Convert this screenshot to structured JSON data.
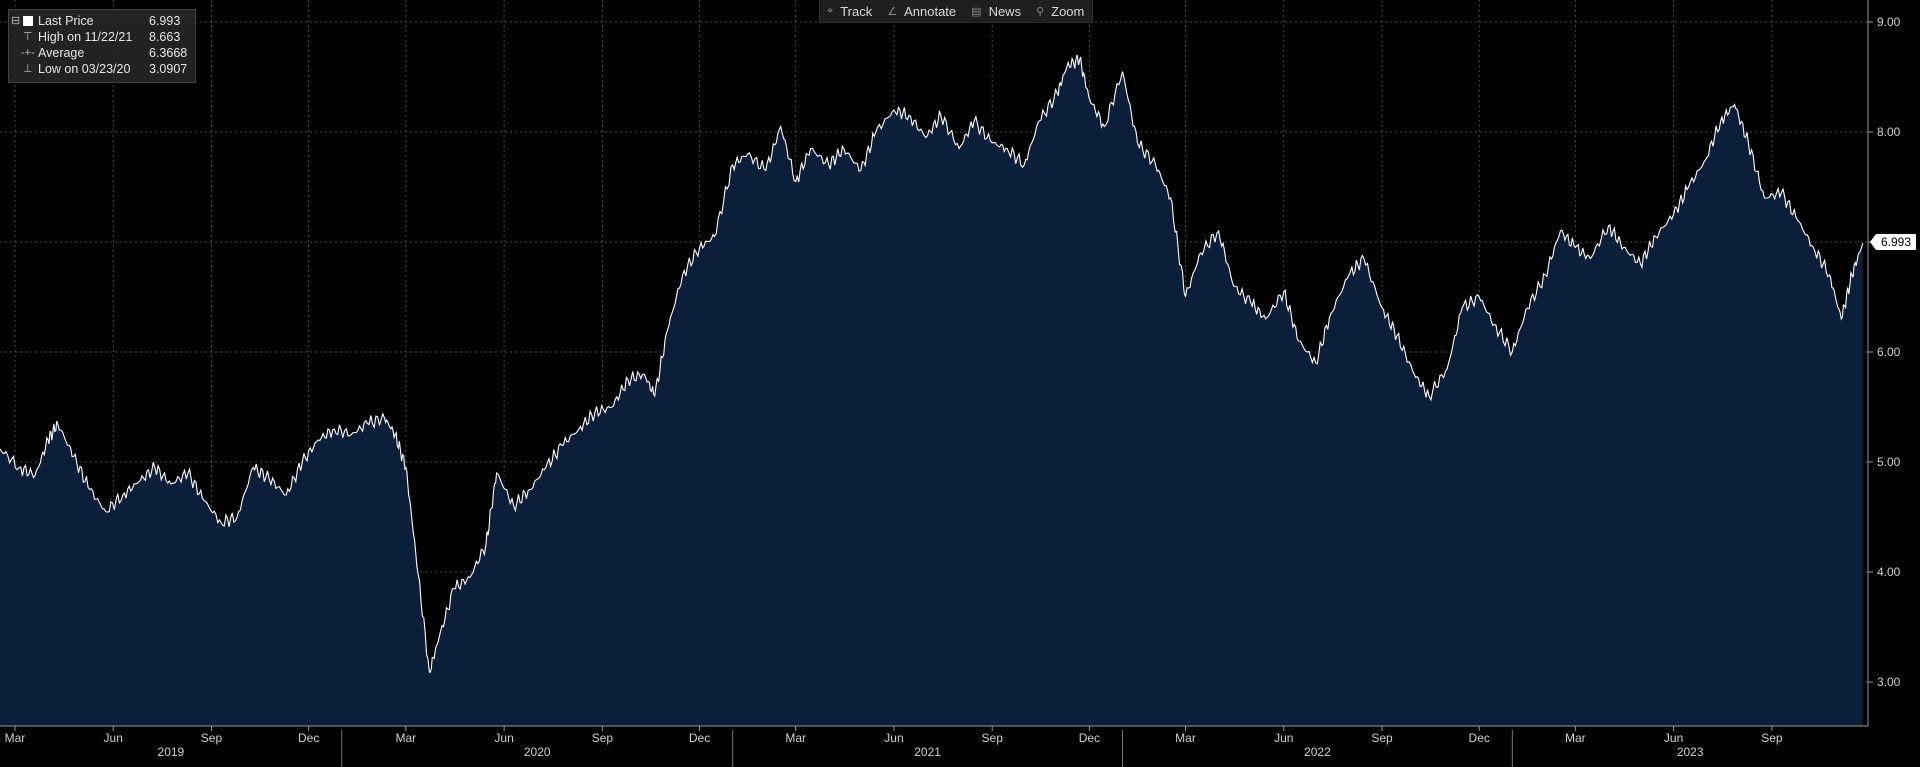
{
  "toolbar": {
    "items": [
      {
        "icon": "crosshair-icon",
        "glyph": "⌖",
        "label": "Track"
      },
      {
        "icon": "pencil-icon",
        "glyph": "∠",
        "label": "Annotate"
      },
      {
        "icon": "news-icon",
        "glyph": "▤",
        "label": "News"
      },
      {
        "icon": "magnifier-icon",
        "glyph": "⚲",
        "label": "Zoom"
      }
    ]
  },
  "legend": {
    "last_label": "Last Price",
    "last_value": "6.993",
    "high_label": "High on 11/22/21",
    "high_value": "8.663",
    "avg_label": "Average",
    "avg_value": "6.3668",
    "low_label": "Low on 03/23/20",
    "low_value": "3.0907"
  },
  "last_price_tag": "6.993",
  "colors": {
    "area_fill": "#0b1f3a",
    "line": "#ffffff",
    "grid": "#555555",
    "background": "#000000"
  },
  "chart_data": {
    "type": "area",
    "y_ticks": [
      "3.00",
      "4.00",
      "5.00",
      "6.00",
      "7.00",
      "8.00",
      "9.00"
    ],
    "ylim": [
      2.6,
      9.2
    ],
    "month_ticks": [
      "Mar",
      "Jun",
      "Sep",
      "Dec",
      "Mar",
      "Jun",
      "Sep",
      "Dec",
      "Mar",
      "Jun",
      "Sep",
      "Dec",
      "Mar",
      "Jun",
      "Sep",
      "Dec",
      "Mar",
      "Jun",
      "Sep"
    ],
    "year_labels": [
      "2019",
      "2020",
      "2021",
      "2022",
      "2023"
    ],
    "x_start": "2019-02-15",
    "x_end": "2023-11-30",
    "series": [
      {
        "name": "Last Price",
        "points": [
          [
            "2019-02-15",
            5.12
          ],
          [
            "2019-03-05",
            4.95
          ],
          [
            "2019-03-20",
            4.88
          ],
          [
            "2019-04-01",
            5.2
          ],
          [
            "2019-04-10",
            5.35
          ],
          [
            "2019-04-25",
            5.05
          ],
          [
            "2019-05-10",
            4.75
          ],
          [
            "2019-05-25",
            4.55
          ],
          [
            "2019-06-10",
            4.7
          ],
          [
            "2019-06-25",
            4.82
          ],
          [
            "2019-07-10",
            4.95
          ],
          [
            "2019-07-25",
            4.8
          ],
          [
            "2019-08-10",
            4.9
          ],
          [
            "2019-08-25",
            4.65
          ],
          [
            "2019-09-10",
            4.45
          ],
          [
            "2019-09-25",
            4.5
          ],
          [
            "2019-10-10",
            4.95
          ],
          [
            "2019-10-25",
            4.85
          ],
          [
            "2019-11-10",
            4.7
          ],
          [
            "2019-11-25",
            5.0
          ],
          [
            "2019-12-10",
            5.2
          ],
          [
            "2019-12-25",
            5.3
          ],
          [
            "2020-01-10",
            5.25
          ],
          [
            "2020-01-25",
            5.35
          ],
          [
            "2020-02-10",
            5.4
          ],
          [
            "2020-02-20",
            5.25
          ],
          [
            "2020-03-01",
            4.95
          ],
          [
            "2020-03-10",
            4.2
          ],
          [
            "2020-03-23",
            3.09
          ],
          [
            "2020-04-01",
            3.4
          ],
          [
            "2020-04-15",
            3.85
          ],
          [
            "2020-04-30",
            3.95
          ],
          [
            "2020-05-15",
            4.25
          ],
          [
            "2020-05-25",
            4.9
          ],
          [
            "2020-06-10",
            4.6
          ],
          [
            "2020-06-25",
            4.75
          ],
          [
            "2020-07-10",
            4.95
          ],
          [
            "2020-07-25",
            5.15
          ],
          [
            "2020-08-10",
            5.3
          ],
          [
            "2020-08-25",
            5.45
          ],
          [
            "2020-09-10",
            5.5
          ],
          [
            "2020-09-25",
            5.75
          ],
          [
            "2020-10-10",
            5.8
          ],
          [
            "2020-10-20",
            5.6
          ],
          [
            "2020-11-01",
            6.2
          ],
          [
            "2020-11-15",
            6.7
          ],
          [
            "2020-12-01",
            6.95
          ],
          [
            "2020-12-15",
            7.05
          ],
          [
            "2021-01-01",
            7.7
          ],
          [
            "2021-01-15",
            7.8
          ],
          [
            "2021-02-01",
            7.65
          ],
          [
            "2021-02-15",
            8.05
          ],
          [
            "2021-03-01",
            7.55
          ],
          [
            "2021-03-15",
            7.85
          ],
          [
            "2021-04-01",
            7.7
          ],
          [
            "2021-04-15",
            7.85
          ],
          [
            "2021-05-01",
            7.65
          ],
          [
            "2021-05-15",
            8.0
          ],
          [
            "2021-06-01",
            8.2
          ],
          [
            "2021-06-15",
            8.15
          ],
          [
            "2021-07-01",
            7.95
          ],
          [
            "2021-07-15",
            8.15
          ],
          [
            "2021-08-01",
            7.85
          ],
          [
            "2021-08-15",
            8.1
          ],
          [
            "2021-09-01",
            7.9
          ],
          [
            "2021-09-15",
            7.85
          ],
          [
            "2021-10-01",
            7.7
          ],
          [
            "2021-10-15",
            8.1
          ],
          [
            "2021-11-01",
            8.35
          ],
          [
            "2021-11-10",
            8.6
          ],
          [
            "2021-11-22",
            8.66
          ],
          [
            "2021-12-01",
            8.3
          ],
          [
            "2021-12-15",
            8.05
          ],
          [
            "2022-01-01",
            8.55
          ],
          [
            "2022-01-15",
            7.9
          ],
          [
            "2022-02-01",
            7.7
          ],
          [
            "2022-02-15",
            7.4
          ],
          [
            "2022-03-01",
            6.5
          ],
          [
            "2022-03-15",
            6.9
          ],
          [
            "2022-04-01",
            7.1
          ],
          [
            "2022-04-15",
            6.6
          ],
          [
            "2022-05-01",
            6.45
          ],
          [
            "2022-05-15",
            6.3
          ],
          [
            "2022-06-01",
            6.55
          ],
          [
            "2022-06-15",
            6.1
          ],
          [
            "2022-07-01",
            5.9
          ],
          [
            "2022-07-15",
            6.35
          ],
          [
            "2022-08-01",
            6.7
          ],
          [
            "2022-08-15",
            6.85
          ],
          [
            "2022-09-01",
            6.4
          ],
          [
            "2022-09-15",
            6.15
          ],
          [
            "2022-10-01",
            5.8
          ],
          [
            "2022-10-15",
            5.6
          ],
          [
            "2022-11-01",
            5.85
          ],
          [
            "2022-11-15",
            6.4
          ],
          [
            "2022-12-01",
            6.5
          ],
          [
            "2022-12-15",
            6.25
          ],
          [
            "2023-01-01",
            6.0
          ],
          [
            "2023-01-15",
            6.4
          ],
          [
            "2023-02-01",
            6.7
          ],
          [
            "2023-02-15",
            7.1
          ],
          [
            "2023-03-01",
            6.95
          ],
          [
            "2023-03-15",
            6.85
          ],
          [
            "2023-04-01",
            7.15
          ],
          [
            "2023-04-15",
            6.95
          ],
          [
            "2023-05-01",
            6.8
          ],
          [
            "2023-05-15",
            7.05
          ],
          [
            "2023-06-01",
            7.25
          ],
          [
            "2023-06-15",
            7.5
          ],
          [
            "2023-07-01",
            7.75
          ],
          [
            "2023-07-15",
            8.1
          ],
          [
            "2023-07-28",
            8.25
          ],
          [
            "2023-08-10",
            7.9
          ],
          [
            "2023-08-25",
            7.4
          ],
          [
            "2023-09-10",
            7.45
          ],
          [
            "2023-09-25",
            7.2
          ],
          [
            "2023-10-10",
            6.95
          ],
          [
            "2023-10-25",
            6.7
          ],
          [
            "2023-11-05",
            6.3
          ],
          [
            "2023-11-15",
            6.7
          ],
          [
            "2023-11-25",
            6.99
          ]
        ]
      }
    ]
  }
}
